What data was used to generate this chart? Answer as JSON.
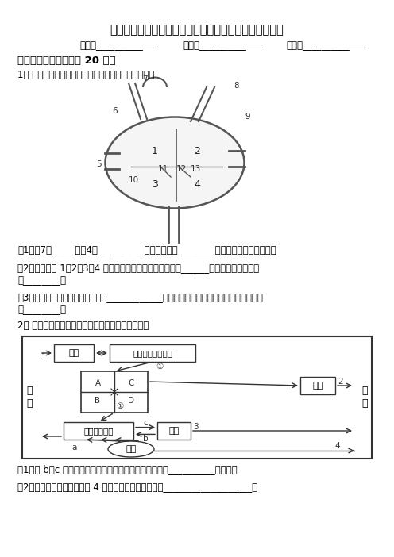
{
  "title": "初中生物输送血液的泵心脏试验图片类题专题训练含答案",
  "subtitle_name": "姓名：__________",
  "subtitle_class": "班级：__________",
  "subtitle_id": "考号：__________",
  "section1": "一、试验图片类题（共 20 题）",
  "q1_intro": "1、 下图是人体心脏结构示意图，据图回答下列问题：",
  "q1_1": "（1）（7）_____与（4）__________相通，把血液________（填送出或送回）心脏。",
  "q1_2a": "（2）在心脏的 1、2、3、4 四个腔中，充满动脉血的心腔有______，充满静脉血的心腔",
  "q1_2b": "有________。",
  "q1_3a": "（3）区分动脉血与静脉血的依据是____________；区分动脉与静脉的依据是以心脏为参照",
  "q1_3b": "的________。",
  "q2_intro": "2、 以下是人体部分生理活动示意图，请据图回答：",
  "q2_1": "（1）若 b、c 表示组织内的气体交换过程，该过程是通过__________完成的。",
  "q2_2": "（2）图中所示与外界相连的 4 条途径中，属于排泄的是___________________。",
  "bg_color": "#ffffff",
  "text_color": "#000000",
  "border_color": "#000000"
}
